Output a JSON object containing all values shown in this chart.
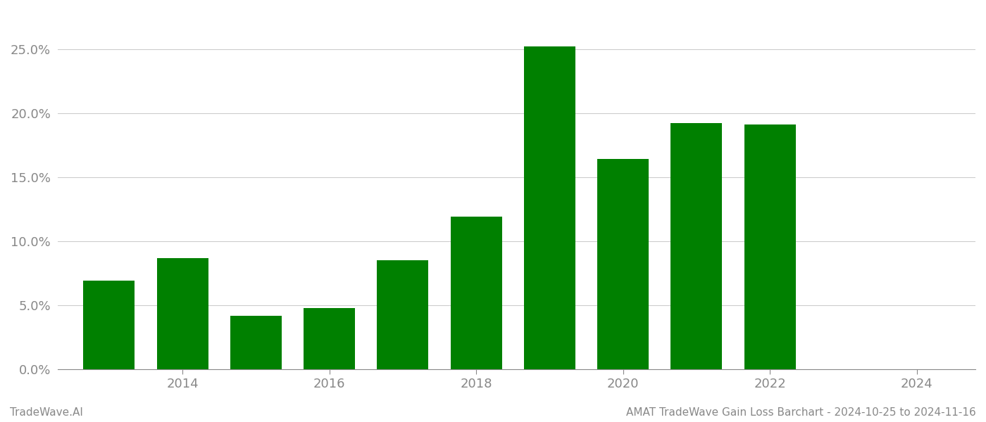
{
  "years": [
    2013,
    2014,
    2015,
    2016,
    2017,
    2018,
    2019,
    2020,
    2021,
    2022,
    2023
  ],
  "values": [
    0.069,
    0.087,
    0.042,
    0.048,
    0.085,
    0.119,
    0.252,
    0.164,
    0.192,
    0.191,
    0.0
  ],
  "bar_color": "#008000",
  "background_color": "#ffffff",
  "grid_color": "#cccccc",
  "axis_label_color": "#888888",
  "tick_color": "#888888",
  "ylim": [
    0,
    0.28
  ],
  "yticks": [
    0.0,
    0.05,
    0.1,
    0.15,
    0.2,
    0.25
  ],
  "ytick_labels": [
    "0.0%",
    "5.0%",
    "10.0%",
    "15.0%",
    "20.0%",
    "25.0%"
  ],
  "xtick_years": [
    2014,
    2016,
    2018,
    2020,
    2022,
    2024
  ],
  "footer_left": "TradeWave.AI",
  "footer_right": "AMAT TradeWave Gain Loss Barchart - 2024-10-25 to 2024-11-16",
  "footer_color": "#888888",
  "bar_width": 0.7
}
